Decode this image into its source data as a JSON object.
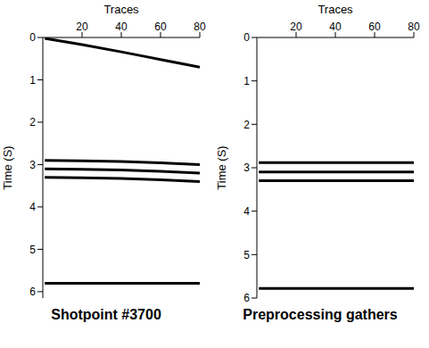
{
  "chart_data": [
    {
      "type": "line",
      "title": "Shotpoint #3700",
      "x_label": "Traces",
      "y_label": "Time (S)",
      "x": [
        1,
        20,
        40,
        60,
        80
      ],
      "xlim": [
        0,
        80
      ],
      "xticks": [
        20,
        40,
        60,
        80
      ],
      "ylim": [
        0,
        6.15
      ],
      "yticks": [
        0,
        1,
        2,
        3,
        4,
        5,
        6
      ],
      "series": [
        {
          "color": "#000000",
          "line_style": "solid",
          "values": [
            0.02,
            0.17,
            0.34,
            0.52,
            0.7
          ]
        },
        {
          "color": "#000000",
          "line_style": "solid",
          "values": [
            2.9,
            2.91,
            2.93,
            2.96,
            3.0
          ]
        },
        {
          "color": "#000000",
          "line_style": "solid",
          "values": [
            3.1,
            3.11,
            3.13,
            3.16,
            3.2
          ]
        },
        {
          "color": "#000000",
          "line_style": "solid",
          "values": [
            3.3,
            3.31,
            3.33,
            3.36,
            3.4
          ]
        },
        {
          "color": "#000000",
          "line_style": "solid",
          "values": [
            5.8,
            5.8,
            5.8,
            5.8,
            5.8
          ]
        }
      ]
    },
    {
      "type": "line",
      "title": "Preprocessing gathers",
      "x_label": "Traces",
      "y_label": "Time (S)",
      "x": [
        1,
        20,
        40,
        60,
        80
      ],
      "xlim": [
        0,
        80
      ],
      "xticks": [
        20,
        40,
        60,
        80
      ],
      "ylim": [
        0,
        6
      ],
      "yticks": [
        0,
        1,
        2,
        3,
        4,
        5,
        6
      ],
      "series": [
        {
          "color": "#000000",
          "line_style": "solid",
          "values": [
            2.88,
            2.88,
            2.88,
            2.88,
            2.88
          ]
        },
        {
          "color": "#000000",
          "line_style": "solid",
          "values": [
            3.1,
            3.1,
            3.1,
            3.1,
            3.1
          ]
        },
        {
          "color": "#000000",
          "line_style": "solid",
          "values": [
            3.3,
            3.3,
            3.3,
            3.3,
            3.3
          ]
        },
        {
          "color": "#000000",
          "line_style": "solid",
          "values": [
            5.78,
            5.78,
            5.78,
            5.78,
            5.78
          ]
        }
      ]
    }
  ]
}
